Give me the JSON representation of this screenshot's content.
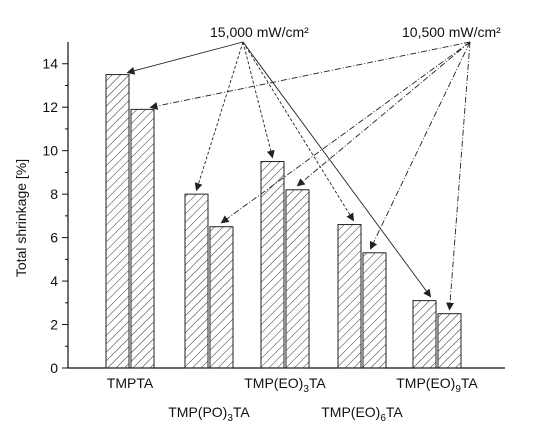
{
  "chart_data": {
    "type": "bar",
    "title": "",
    "xlabel": "",
    "ylabel": "Total shrinkage [%]",
    "ylim": [
      0,
      15
    ],
    "yticks": [
      0,
      2,
      4,
      6,
      8,
      10,
      12,
      14
    ],
    "grid": false,
    "categories": [
      {
        "base": "TMPTA",
        "sub": "",
        "tail": ""
      },
      {
        "base": "TMP(PO)",
        "sub": "3",
        "tail": "TA"
      },
      {
        "base": "TMP(EO)",
        "sub": "3",
        "tail": "TA"
      },
      {
        "base": "TMP(EO)",
        "sub": "6",
        "tail": "TA"
      },
      {
        "base": "TMP(EO)",
        "sub": "9",
        "tail": "TA"
      }
    ],
    "series": [
      {
        "name": "15,000 mW/cm²",
        "values": [
          13.5,
          8.0,
          9.5,
          6.6,
          3.1
        ]
      },
      {
        "name": "10,500 mW/cm²",
        "values": [
          11.9,
          6.5,
          8.2,
          5.3,
          2.5
        ]
      }
    ],
    "legend": "annotation arrows at top"
  }
}
